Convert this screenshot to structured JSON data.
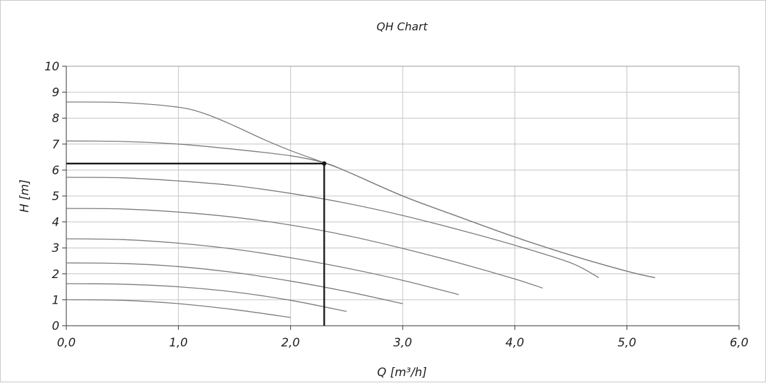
{
  "chart_data": {
    "type": "line",
    "title": "QH Chart",
    "xlabel": "Q [m³/h]",
    "ylabel": "H [m]",
    "xlim": [
      0,
      6
    ],
    "ylim": [
      0,
      10
    ],
    "grid": true,
    "x_ticks": [
      "0,0",
      "1,0",
      "2,0",
      "3,0",
      "4,0",
      "5,0",
      "6,0"
    ],
    "y_ticks": [
      "0",
      "1",
      "2",
      "3",
      "4",
      "5",
      "6",
      "7",
      "8",
      "9",
      "10"
    ],
    "colors": {
      "curve": "#7a7a7a",
      "duty": "#1a1a1a",
      "grid": "#c4c4c4",
      "axis": "#333333"
    },
    "series": [
      {
        "points": [
          [
            0,
            1.0
          ],
          [
            0.5,
            0.98
          ],
          [
            1.0,
            0.85
          ],
          [
            1.5,
            0.62
          ],
          [
            2.0,
            0.32
          ]
        ]
      },
      {
        "points": [
          [
            0,
            1.62
          ],
          [
            0.5,
            1.6
          ],
          [
            1.0,
            1.5
          ],
          [
            1.5,
            1.3
          ],
          [
            2.0,
            0.98
          ],
          [
            2.5,
            0.55
          ]
        ]
      },
      {
        "points": [
          [
            0,
            2.42
          ],
          [
            0.5,
            2.4
          ],
          [
            1.0,
            2.28
          ],
          [
            1.5,
            2.05
          ],
          [
            2.0,
            1.72
          ],
          [
            2.5,
            1.32
          ],
          [
            3.0,
            0.85
          ]
        ]
      },
      {
        "points": [
          [
            0,
            3.35
          ],
          [
            0.5,
            3.32
          ],
          [
            1.0,
            3.18
          ],
          [
            1.5,
            2.95
          ],
          [
            2.0,
            2.62
          ],
          [
            2.5,
            2.22
          ],
          [
            3.0,
            1.75
          ],
          [
            3.5,
            1.2
          ]
        ]
      },
      {
        "points": [
          [
            0,
            4.52
          ],
          [
            0.5,
            4.5
          ],
          [
            1.0,
            4.38
          ],
          [
            1.5,
            4.18
          ],
          [
            2.0,
            3.88
          ],
          [
            2.5,
            3.48
          ],
          [
            3.0,
            2.98
          ],
          [
            3.5,
            2.42
          ],
          [
            4.0,
            1.8
          ],
          [
            4.25,
            1.45
          ]
        ]
      },
      {
        "points": [
          [
            0,
            5.72
          ],
          [
            0.5,
            5.7
          ],
          [
            1.0,
            5.58
          ],
          [
            1.5,
            5.4
          ],
          [
            2.0,
            5.1
          ],
          [
            2.5,
            4.72
          ],
          [
            3.0,
            4.25
          ],
          [
            3.5,
            3.7
          ],
          [
            4.0,
            3.1
          ],
          [
            4.5,
            2.42
          ],
          [
            4.75,
            1.85
          ]
        ]
      },
      {
        "points": [
          [
            0,
            7.12
          ],
          [
            0.5,
            7.1
          ],
          [
            1.0,
            7.0
          ],
          [
            1.5,
            6.8
          ],
          [
            2.0,
            6.55
          ],
          [
            2.3,
            6.28
          ],
          [
            2.5,
            5.95
          ],
          [
            3.0,
            5.0
          ],
          [
            3.5,
            4.2
          ],
          [
            4.0,
            3.42
          ],
          [
            4.5,
            2.72
          ],
          [
            5.0,
            2.1
          ],
          [
            5.25,
            1.85
          ]
        ]
      },
      {
        "points": [
          [
            0,
            8.62
          ],
          [
            0.5,
            8.6
          ],
          [
            1.0,
            8.42
          ],
          [
            1.25,
            8.15
          ],
          [
            1.5,
            7.7
          ],
          [
            1.75,
            7.2
          ],
          [
            2.0,
            6.75
          ],
          [
            2.3,
            6.28
          ],
          [
            2.5,
            5.95
          ],
          [
            3.0,
            5.0
          ],
          [
            3.5,
            4.2
          ],
          [
            4.0,
            3.42
          ],
          [
            4.5,
            2.72
          ],
          [
            5.0,
            2.1
          ],
          [
            5.25,
            1.85
          ]
        ]
      }
    ],
    "duty_point": {
      "q": 2.3,
      "h": 6.25
    }
  }
}
